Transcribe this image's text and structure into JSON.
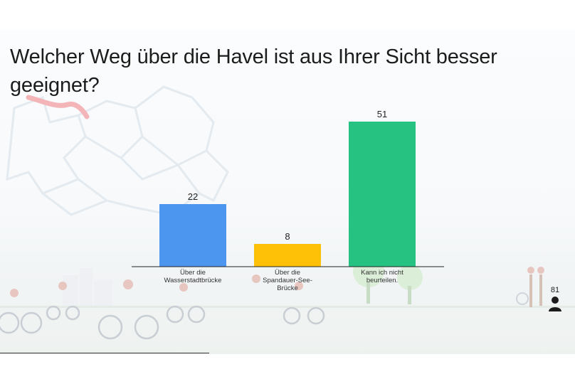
{
  "question": {
    "title": "Welcher Weg über die Havel ist aus Ihrer Sicht besser geeignet?"
  },
  "participants": {
    "count": "81",
    "icon": "person-icon"
  },
  "chart_data": {
    "type": "bar",
    "categories": [
      [
        "Über die",
        "Wasserstadtbrücke"
      ],
      [
        "Über die",
        "Spandauer-See-",
        "Brücke"
      ],
      [
        "Kann ich nicht",
        "beurteilen."
      ]
    ],
    "values": [
      22,
      8,
      51
    ],
    "colors": [
      "#4c96f0",
      "#ffc107",
      "#26c281"
    ],
    "data_labels": [
      "22",
      "8",
      "51"
    ],
    "title": "",
    "xlabel": "",
    "ylabel": "",
    "ylim": [
      0,
      51
    ],
    "grid": false,
    "legend": "none"
  }
}
